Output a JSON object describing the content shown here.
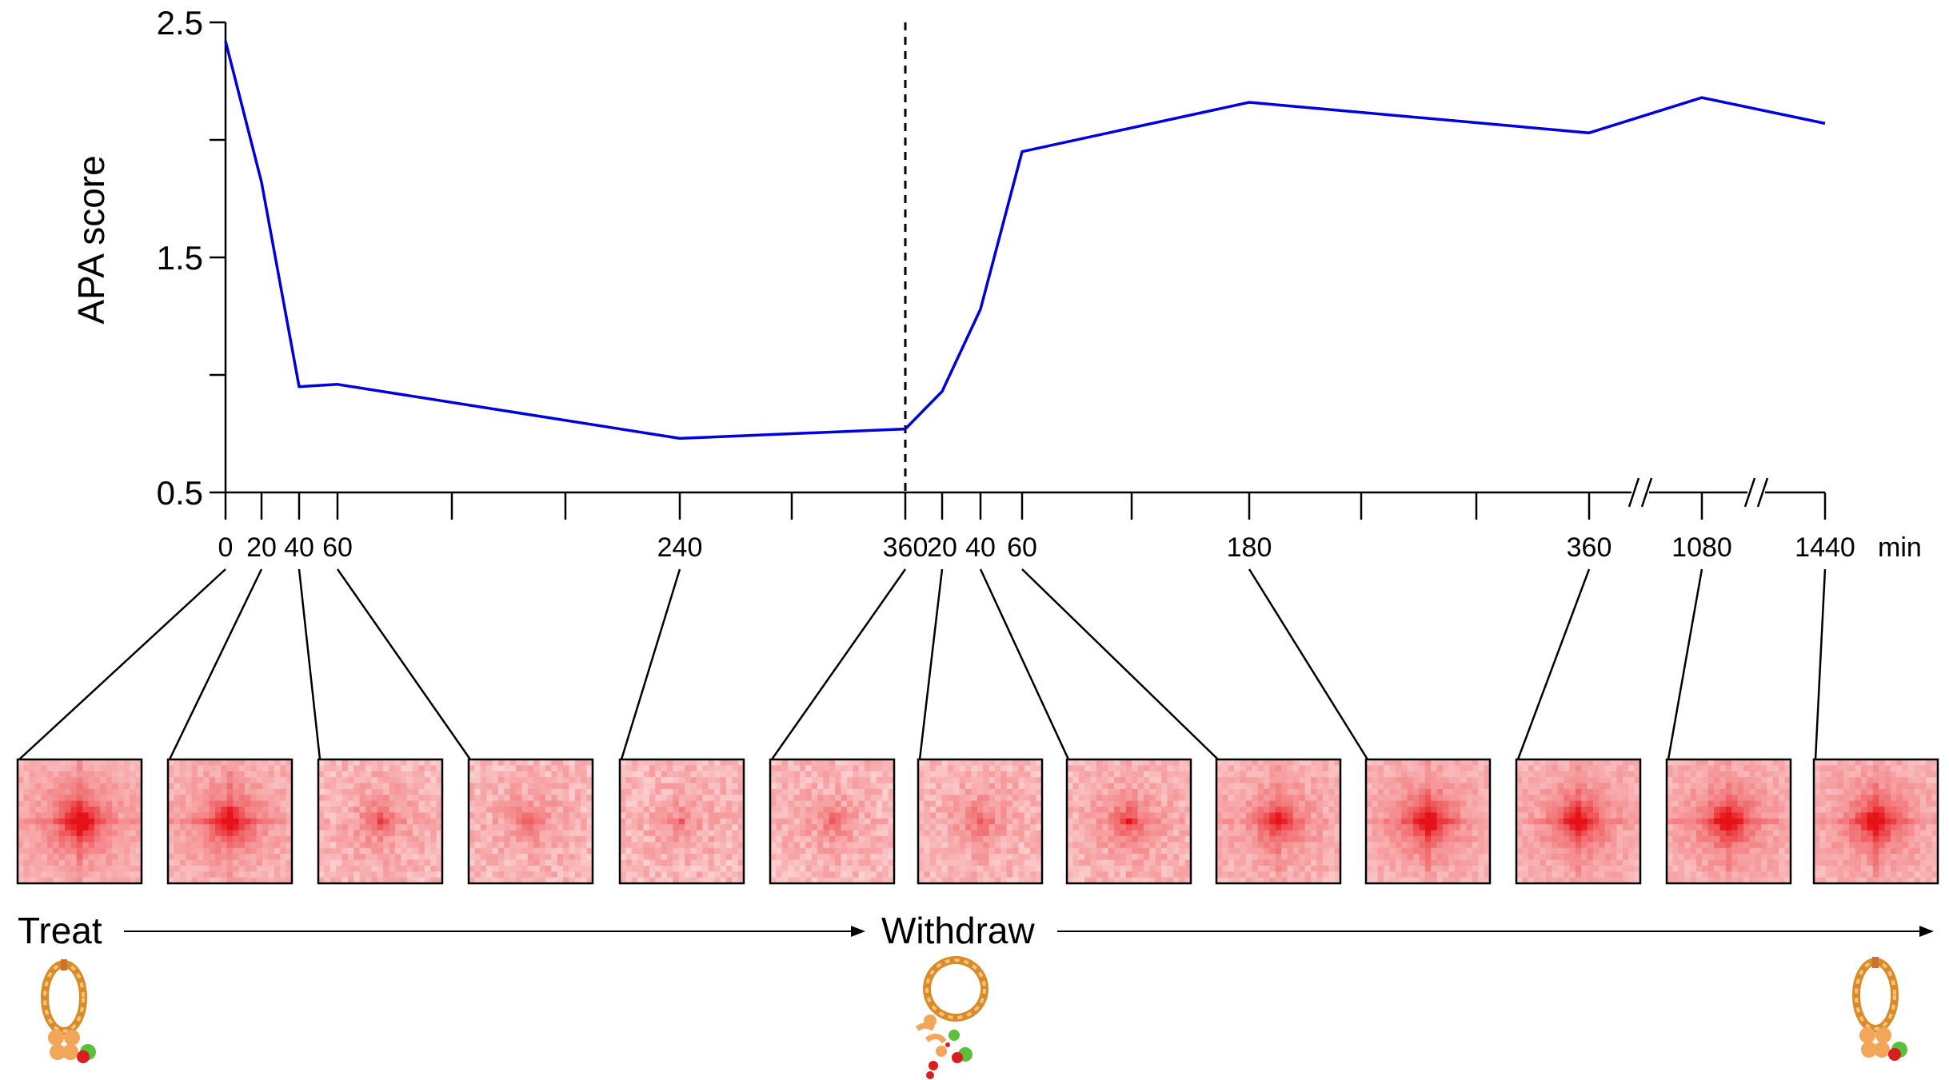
{
  "chart_data": {
    "type": "line",
    "title": "",
    "ylabel": "APA score",
    "xlabel": "",
    "x_unit": "min",
    "ylim": [
      0.5,
      2.5
    ],
    "y_ticks": [
      0.5,
      1.0,
      1.5,
      2.0,
      2.5
    ],
    "y_tick_labels": [
      "0.5",
      "1.5",
      "2.5"
    ],
    "x_tick_labels": [
      "0",
      "20",
      "40",
      "60",
      "240",
      "360",
      "20",
      "40",
      "60",
      "180",
      "360",
      "1080",
      "1440"
    ],
    "series": [
      {
        "name": "APA score",
        "color": "#0000dd",
        "points": [
          {
            "label": "0",
            "phase": "Treat",
            "value": 2.42
          },
          {
            "label": "20",
            "phase": "Treat",
            "value": 1.82
          },
          {
            "label": "40",
            "phase": "Treat",
            "value": 0.95
          },
          {
            "label": "60",
            "phase": "Treat",
            "value": 0.96
          },
          {
            "label": "240",
            "phase": "Treat",
            "value": 0.73
          },
          {
            "label": "360",
            "phase": "Treat",
            "value": 0.77
          },
          {
            "label": "20",
            "phase": "Withdraw",
            "value": 0.93
          },
          {
            "label": "40",
            "phase": "Withdraw",
            "value": 1.28
          },
          {
            "label": "60",
            "phase": "Withdraw",
            "value": 1.95
          },
          {
            "label": "180",
            "phase": "Withdraw",
            "value": 2.16
          },
          {
            "label": "360",
            "phase": "Withdraw",
            "value": 2.03
          },
          {
            "label": "1080",
            "phase": "Withdraw",
            "value": 2.18
          },
          {
            "label": "1440",
            "phase": "Withdraw",
            "value": 2.07
          }
        ]
      }
    ],
    "annotations": [
      {
        "type": "vertical-dashed-line",
        "at_label": "360",
        "meaning": "switch from Treat to Withdraw"
      },
      {
        "type": "axis-break",
        "between": [
          "360",
          "1080"
        ]
      },
      {
        "type": "axis-break",
        "between": [
          "1080",
          "1440"
        ]
      }
    ],
    "apa_heatmaps": {
      "description_levels": [
        1.0,
        0.92,
        0.45,
        0.38,
        0.3,
        0.35,
        0.42,
        0.55,
        0.75,
        0.95,
        0.92,
        0.96,
        0.95
      ]
    },
    "phases": {
      "treat_label": "Treat",
      "withdraw_label": "Withdraw"
    },
    "colors": {
      "line": "#0000dd",
      "heatmap_base": "#fbd6d6",
      "heatmap_peak": "#e8101a"
    },
    "icons": [
      "cohesin-ring-icon",
      "cohesin-ring-degraded-icon",
      "cohesin-ring-icon"
    ]
  }
}
